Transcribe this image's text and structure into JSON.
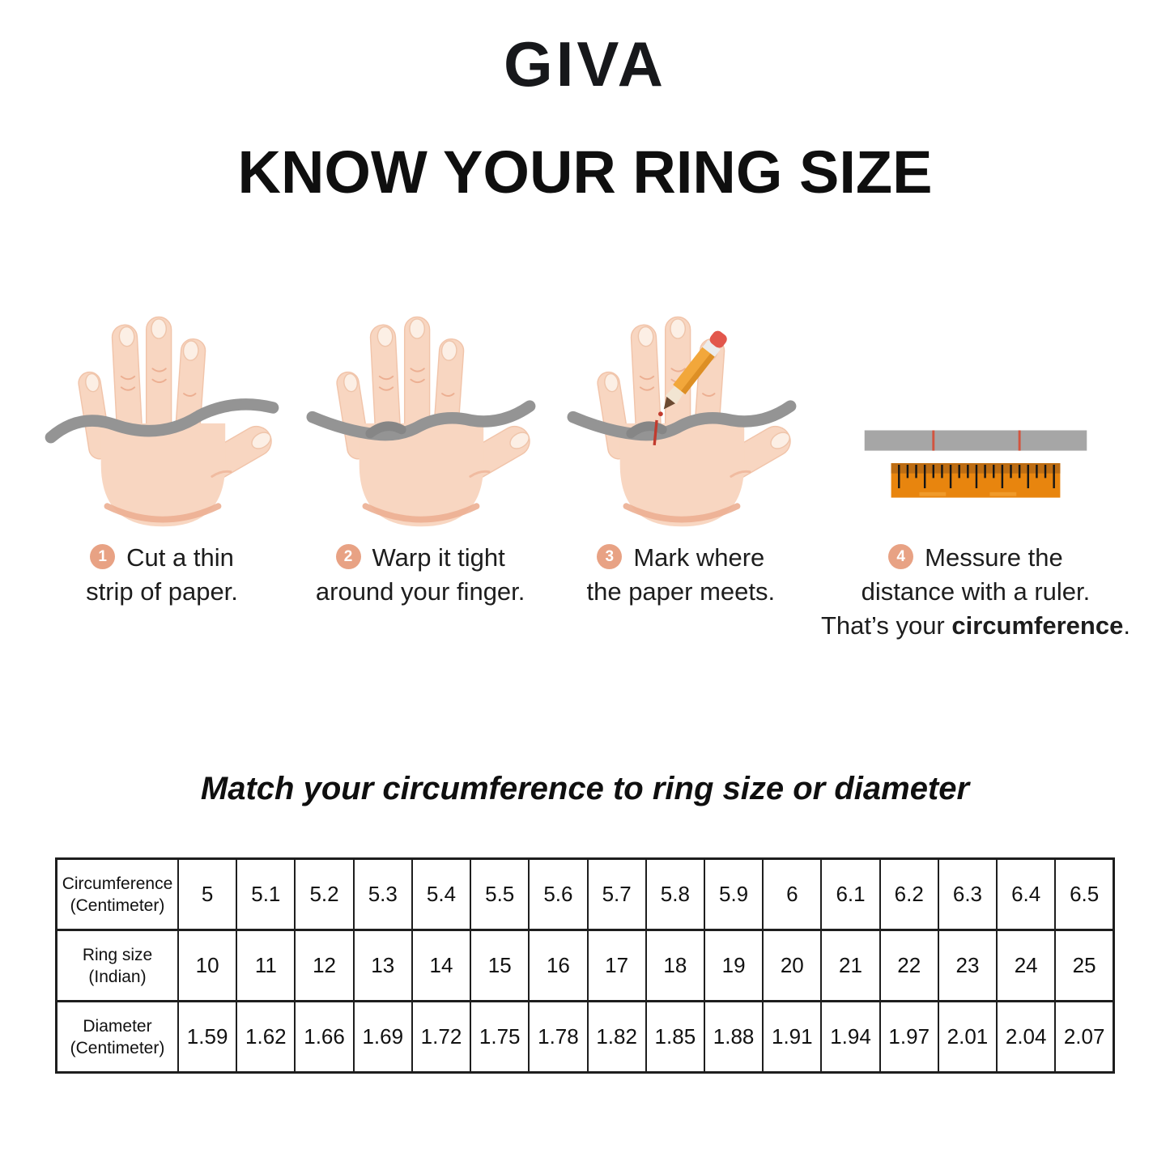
{
  "brand": {
    "logo_text": "GIVA"
  },
  "title": "KNOW YOUR RING SIZE",
  "steps": [
    {
      "number": "1",
      "line1": "Cut a thin",
      "line2": "strip of paper."
    },
    {
      "number": "2",
      "line1": "Warp it tight",
      "line2": "around your finger."
    },
    {
      "number": "3",
      "line1": "Mark where",
      "line2": "the paper meets."
    },
    {
      "number": "4",
      "line1": "Messure the",
      "line2": "distance with a ruler.",
      "line3_prefix": "That’s your ",
      "line3_bold": "circumference",
      "line3_suffix": "."
    }
  ],
  "icons": [
    "hand-with-paper-strip-icon",
    "hand-strip-wrapped-icon",
    "hand-pencil-mark-icon",
    "ruler-icon"
  ],
  "match_heading": "Match your circumference to ring size or diameter",
  "table": {
    "rows": [
      {
        "header_line1": "Circumference",
        "header_line2": "(Centimeter)",
        "values": [
          "5",
          "5.1",
          "5.2",
          "5.3",
          "5.4",
          "5.5",
          "5.6",
          "5.7",
          "5.8",
          "5.9",
          "6",
          "6.1",
          "6.2",
          "6.3",
          "6.4",
          "6.5"
        ]
      },
      {
        "header_line1": "Ring size",
        "header_line2": "(Indian)",
        "values": [
          "10",
          "11",
          "12",
          "13",
          "14",
          "15",
          "16",
          "17",
          "18",
          "19",
          "20",
          "21",
          "22",
          "23",
          "24",
          "25"
        ]
      },
      {
        "header_line1": "Diameter",
        "header_line2": "(Centimeter)",
        "values": [
          "1.59",
          "1.62",
          "1.66",
          "1.69",
          "1.72",
          "1.75",
          "1.78",
          "1.82",
          "1.85",
          "1.88",
          "1.91",
          "1.94",
          "1.97",
          "2.01",
          "2.04",
          "2.07"
        ]
      }
    ]
  },
  "colors": {
    "badge_salmon": "#E8A284",
    "skin": "#F8D6C1",
    "skin_shade": "#ECAF92",
    "strip_gray": "#949494",
    "ruler_orange": "#E8850E",
    "ruler_band": "#BD6D13",
    "mark_red": "#C84B38",
    "text": "#1d1d1d",
    "border": "#1e1e1e"
  }
}
